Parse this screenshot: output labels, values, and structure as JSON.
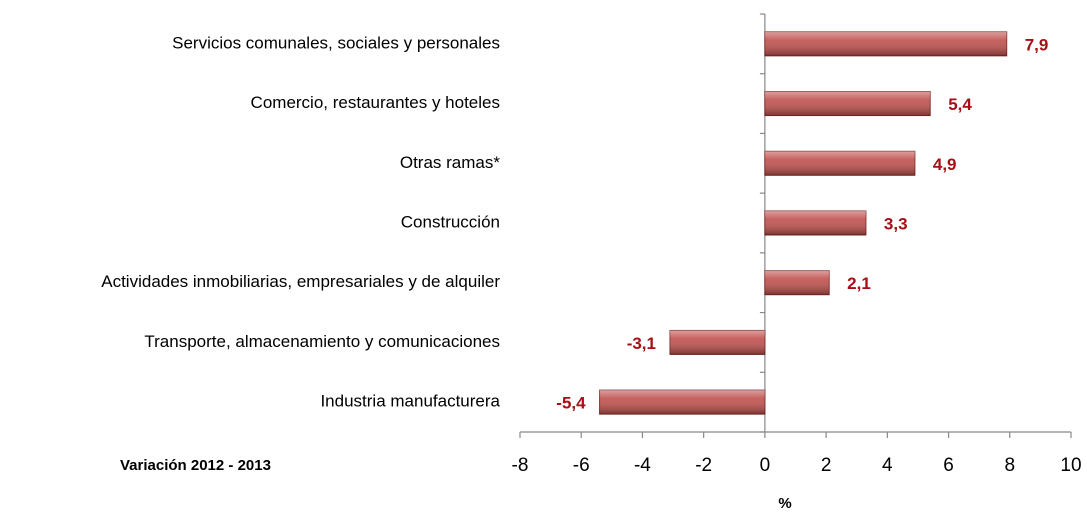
{
  "chart_data": {
    "type": "bar",
    "orientation": "horizontal",
    "categories": [
      "Servicios comunales, sociales y personales",
      "Comercio, restaurantes y hoteles",
      "Otras ramas*",
      "Construcción",
      "Actividades inmobiliarias, empresariales y de alquiler",
      "Transporte, almacenamiento y comunicaciones",
      "Industria manufacturera"
    ],
    "values": [
      7.9,
      5.4,
      4.9,
      3.3,
      2.1,
      -3.1,
      -5.4
    ],
    "value_labels": [
      "7,9",
      "5,4",
      "4,9",
      "3,3",
      "2,1",
      "-3,1",
      "-5,4"
    ],
    "color": "#c0504d",
    "xlim": [
      -8,
      10
    ],
    "xticks": [
      -8,
      -6,
      -4,
      -2,
      0,
      2,
      4,
      6,
      8,
      10
    ],
    "xlabel": "%",
    "annotation": "Variación 2012 - 2013"
  }
}
